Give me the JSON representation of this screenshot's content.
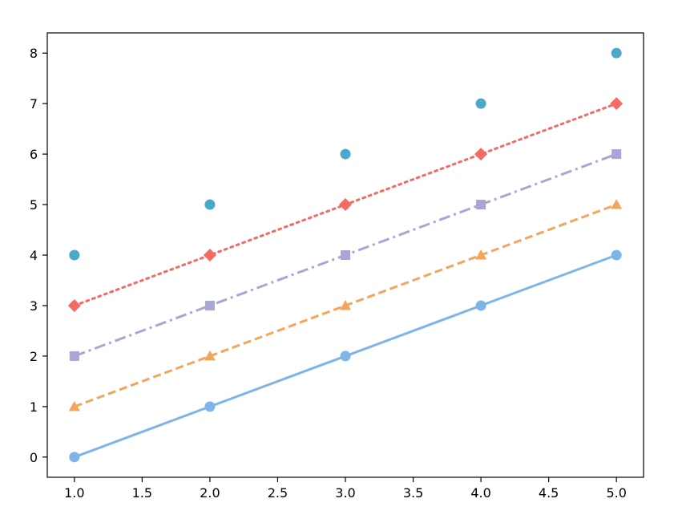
{
  "chart_data": {
    "type": "line",
    "title": "",
    "xlabel": "",
    "ylabel": "",
    "xlim": [
      0.8,
      5.2
    ],
    "ylim": [
      -0.4,
      8.4
    ],
    "grid": false,
    "xticks": [
      1.0,
      1.5,
      2.0,
      2.5,
      3.0,
      3.5,
      4.0,
      4.5,
      5.0
    ],
    "xtick_labels": [
      "1.0",
      "1.5",
      "2.0",
      "2.5",
      "3.0",
      "3.5",
      "4.0",
      "4.5",
      "5.0"
    ],
    "yticks": [
      0,
      1,
      2,
      3,
      4,
      5,
      6,
      7,
      8
    ],
    "ytick_labels": [
      "0",
      "1",
      "2",
      "3",
      "4",
      "5",
      "6",
      "7",
      "8"
    ],
    "x": [
      1,
      2,
      3,
      4,
      5
    ],
    "series": [
      {
        "values": [
          0,
          1,
          2,
          3,
          4
        ],
        "color": "#7eb4e8",
        "line_style": "solid",
        "marker": "circle"
      },
      {
        "values": [
          1,
          2,
          3,
          4,
          5
        ],
        "color": "#f4a55c",
        "line_style": "dashed",
        "marker": "triangle"
      },
      {
        "values": [
          2,
          3,
          4,
          5,
          6
        ],
        "color": "#a8a6d6",
        "line_style": "dashdot",
        "marker": "square"
      },
      {
        "values": [
          3,
          4,
          5,
          6,
          7
        ],
        "color": "#f46b63",
        "line_style": "dotted",
        "marker": "diamond"
      },
      {
        "values": [
          4,
          5,
          6,
          7,
          8
        ],
        "color": "#4aa8c8",
        "line_style": "none",
        "marker": "circle"
      }
    ]
  }
}
